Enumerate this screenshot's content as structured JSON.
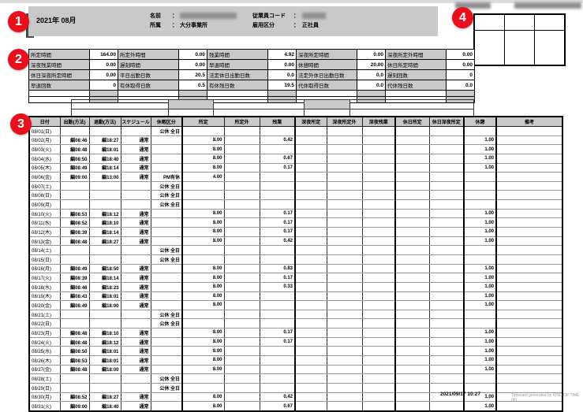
{
  "colors": {
    "header_bg": "#c9c9c9",
    "marker_red": "#e8101c",
    "border": "#000000"
  },
  "annotations": {
    "markers": [
      "1",
      "2",
      "3",
      "4"
    ]
  },
  "header": {
    "period": "2021年 08月",
    "name_label": "名前",
    "name_colon": "：",
    "dept_label": "所属",
    "dept_colon": "：",
    "dept_value": "大分事業所",
    "employee_code_label": "従業員コード",
    "employee_code_colon": "：",
    "employment_type_label": "雇用区分",
    "employment_type_colon": "：",
    "employment_type_value": "正社員"
  },
  "summary": {
    "rows": [
      [
        {
          "label": "所定時間",
          "value": "164.00"
        },
        {
          "label": "所定外時間",
          "value": "0.00"
        },
        {
          "label": "残業時間",
          "value": "4.92"
        },
        {
          "label": "深夜所定時間",
          "value": "0.00"
        },
        {
          "label": "深夜所定外時間",
          "value": "0.00"
        }
      ],
      [
        {
          "label": "深夜残業時間",
          "value": "0.00"
        },
        {
          "label": "遅刻時間",
          "value": "0.00"
        },
        {
          "label": "早退時間",
          "value": "0.00"
        },
        {
          "label": "休憩時間",
          "value": "20.00"
        },
        {
          "label": "休日所定時間",
          "value": "0.00"
        }
      ],
      [
        {
          "label": "休日深夜所定時間",
          "value": "0.00"
        },
        {
          "label": "平日出勤日数",
          "value": "20.5"
        },
        {
          "label": "法定休日出勤日数",
          "value": "0.0"
        },
        {
          "label": "法定外休日出勤日数",
          "value": "0.0"
        },
        {
          "label": "遅刻回数",
          "value": "0"
        }
      ],
      [
        {
          "label": "早退回数",
          "value": "0"
        },
        {
          "label": "有休取得日数",
          "value": "0.5"
        },
        {
          "label": "有休残日数",
          "value": "19.5"
        },
        {
          "label": "代休取得日数",
          "value": "0.0"
        },
        {
          "label": "代休残日数",
          "value": "0.0"
        }
      ]
    ]
  },
  "timesheet": {
    "columns": [
      "日付",
      "出勤(方法)",
      "退勤(方法)",
      "スケジュール",
      "休暇区分",
      "所定",
      "所定外",
      "残業",
      "深夜所定",
      "深夜所定外",
      "深夜残業",
      "休日所定",
      "休日深夜所定",
      "休憩",
      "備考"
    ],
    "rows": [
      [
        "08/01(日)",
        "",
        "",
        "",
        "公休 全日",
        "",
        "",
        "",
        "",
        "",
        "",
        "",
        "",
        "",
        ""
      ],
      [
        "08/02(月)",
        "編08:46",
        "編18:27",
        "通常",
        "",
        "8.00",
        "",
        "0.42",
        "",
        "",
        "",
        "",
        "",
        "1.00",
        ""
      ],
      [
        "08/03(火)",
        "編08:48",
        "編18:01",
        "通常",
        "",
        "8.00",
        "",
        "",
        "",
        "",
        "",
        "",
        "",
        "1.00",
        ""
      ],
      [
        "08/04(水)",
        "編08:50",
        "編18:40",
        "通常",
        "",
        "8.00",
        "",
        "0.67",
        "",
        "",
        "",
        "",
        "",
        "1.00",
        ""
      ],
      [
        "08/05(木)",
        "編08:49",
        "編18:14",
        "通常",
        "",
        "8.00",
        "",
        "0.17",
        "",
        "",
        "",
        "",
        "",
        "1.00",
        ""
      ],
      [
        "08/06(金)",
        "編09:00",
        "編13:00",
        "通常",
        "PM有休",
        "4.00",
        "",
        "",
        "",
        "",
        "",
        "",
        "",
        "",
        ""
      ],
      [
        "08/07(土)",
        "",
        "",
        "",
        "公休 全日",
        "",
        "",
        "",
        "",
        "",
        "",
        "",
        "",
        "",
        ""
      ],
      [
        "08/08(日)",
        "",
        "",
        "",
        "公休 全日",
        "",
        "",
        "",
        "",
        "",
        "",
        "",
        "",
        "",
        ""
      ],
      [
        "08/09(月)",
        "",
        "",
        "",
        "公休 全日",
        "",
        "",
        "",
        "",
        "",
        "",
        "",
        "",
        "",
        ""
      ],
      [
        "08/10(火)",
        "編08:53",
        "編18:12",
        "通常",
        "",
        "8.00",
        "",
        "0.17",
        "",
        "",
        "",
        "",
        "",
        "1.00",
        ""
      ],
      [
        "08/11(水)",
        "編08:52",
        "編18:10",
        "通常",
        "",
        "8.00",
        "",
        "0.17",
        "",
        "",
        "",
        "",
        "",
        "1.00",
        ""
      ],
      [
        "08/12(木)",
        "編08:39",
        "編18:14",
        "通常",
        "",
        "8.00",
        "",
        "0.17",
        "",
        "",
        "",
        "",
        "",
        "1.00",
        ""
      ],
      [
        "08/13(金)",
        "編08:48",
        "編18:27",
        "通常",
        "",
        "8.00",
        "",
        "0.42",
        "",
        "",
        "",
        "",
        "",
        "1.00",
        ""
      ],
      [
        "08/14(土)",
        "",
        "",
        "",
        "公休 全日",
        "",
        "",
        "",
        "",
        "",
        "",
        "",
        "",
        "",
        ""
      ],
      [
        "08/15(日)",
        "",
        "",
        "",
        "公休 全日",
        "",
        "",
        "",
        "",
        "",
        "",
        "",
        "",
        "",
        ""
      ],
      [
        "08/16(月)",
        "編08:49",
        "編18:50",
        "通常",
        "",
        "8.00",
        "",
        "0.83",
        "",
        "",
        "",
        "",
        "",
        "1.00",
        ""
      ],
      [
        "08/17(火)",
        "編08:39",
        "編18:14",
        "通常",
        "",
        "8.00",
        "",
        "0.17",
        "",
        "",
        "",
        "",
        "",
        "1.00",
        ""
      ],
      [
        "08/18(水)",
        "編08:46",
        "編18:23",
        "通常",
        "",
        "8.00",
        "",
        "0.33",
        "",
        "",
        "",
        "",
        "",
        "1.00",
        ""
      ],
      [
        "08/19(木)",
        "編08:43",
        "編18:01",
        "通常",
        "",
        "8.00",
        "",
        "",
        "",
        "",
        "",
        "",
        "",
        "1.00",
        ""
      ],
      [
        "08/20(金)",
        "編08:49",
        "編18:00",
        "通常",
        "",
        "8.00",
        "",
        "",
        "",
        "",
        "",
        "",
        "",
        "1.00",
        ""
      ],
      [
        "08/21(土)",
        "",
        "",
        "",
        "公休 全日",
        "",
        "",
        "",
        "",
        "",
        "",
        "",
        "",
        "",
        ""
      ],
      [
        "08/22(日)",
        "",
        "",
        "",
        "公休 全日",
        "",
        "",
        "",
        "",
        "",
        "",
        "",
        "",
        "",
        ""
      ],
      [
        "08/23(月)",
        "編08:48",
        "編18:10",
        "通常",
        "",
        "8.00",
        "",
        "0.17",
        "",
        "",
        "",
        "",
        "",
        "1.00",
        ""
      ],
      [
        "08/24(火)",
        "編08:48",
        "編18:12",
        "通常",
        "",
        "8.00",
        "",
        "0.17",
        "",
        "",
        "",
        "",
        "",
        "1.00",
        ""
      ],
      [
        "08/25(水)",
        "編08:50",
        "編18:01",
        "通常",
        "",
        "8.00",
        "",
        "",
        "",
        "",
        "",
        "",
        "",
        "1.00",
        ""
      ],
      [
        "08/26(木)",
        "編08:53",
        "編18:01",
        "通常",
        "",
        "8.00",
        "",
        "",
        "",
        "",
        "",
        "",
        "",
        "1.00",
        ""
      ],
      [
        "08/27(金)",
        "編08:48",
        "編18:00",
        "通常",
        "",
        "8.00",
        "",
        "",
        "",
        "",
        "",
        "",
        "",
        "1.00",
        ""
      ],
      [
        "08/28(土)",
        "",
        "",
        "",
        "公休 全日",
        "",
        "",
        "",
        "",
        "",
        "",
        "",
        "",
        "",
        ""
      ],
      [
        "08/29(日)",
        "",
        "",
        "",
        "公休 全日",
        "",
        "",
        "",
        "",
        "",
        "",
        "",
        "",
        "",
        ""
      ],
      [
        "08/30(月)",
        "編08:52",
        "編18:27",
        "通常",
        "",
        "8.00",
        "",
        "0.42",
        "",
        "",
        "",
        "",
        "",
        "1.00",
        ""
      ],
      [
        "08/31(火)",
        "編09:00",
        "編18:40",
        "通常",
        "",
        "8.00",
        "",
        "0.67",
        "",
        "",
        "",
        "",
        "",
        "1.00",
        ""
      ]
    ]
  },
  "footer": {
    "generated_at": "2021/09/17 10:27",
    "credit": "Timecard generated by KING OF TIME (R)"
  }
}
